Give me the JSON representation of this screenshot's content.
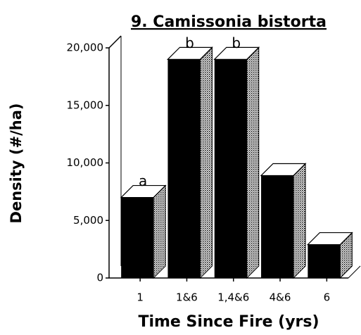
{
  "chart_data": {
    "type": "bar3d",
    "title": "9. Camissonia bistorta",
    "y_label": "Density (#/ha)",
    "x_label": "Time Since Fire (yrs)",
    "categories": [
      "1",
      "1&6",
      "1,4&6",
      "4&6",
      "6"
    ],
    "values": [
      7000,
      19000,
      19000,
      8900,
      2900
    ],
    "annotations": [
      "a",
      "b",
      "b",
      null,
      null
    ],
    "color": "#000000",
    "ylim": [
      0,
      20000
    ],
    "yticks": [
      0,
      {
        "value": 5000,
        "label": "5,000"
      },
      {
        "value": 10000,
        "label": "10,000"
      },
      {
        "value": 15000,
        "label": "15,000"
      },
      {
        "value": 20000,
        "label": "20,000"
      }
    ]
  }
}
